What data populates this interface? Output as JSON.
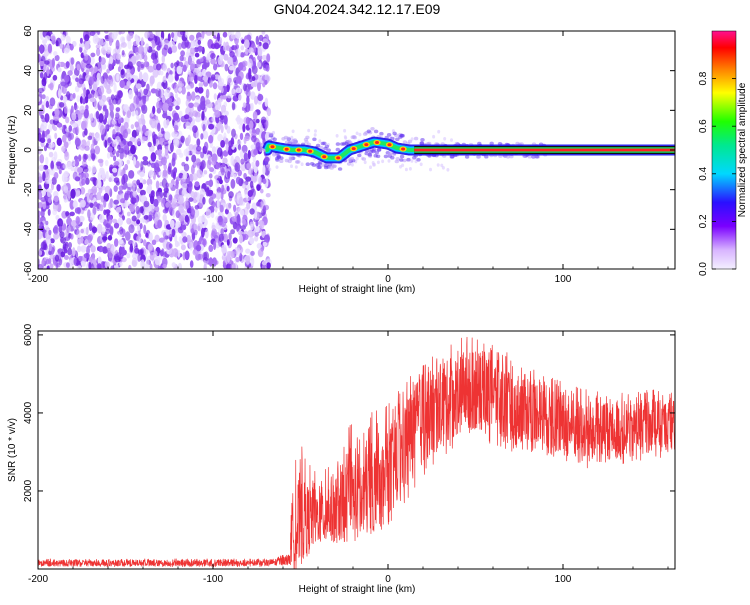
{
  "title": "GN04.2024.342.12.17.E09",
  "chart_data": [
    {
      "type": "heatmap",
      "xlabel": "Height of straight line (km)",
      "ylabel": "Frequency (Hz)",
      "xlim": [
        -200,
        164
      ],
      "ylim": [
        -60,
        60
      ],
      "xticks": [
        "-200",
        "-100",
        "0",
        "100"
      ],
      "yticks": [
        "-60",
        "-40",
        "-20",
        "0",
        "20",
        "40",
        "60"
      ],
      "grid": false,
      "colorbar": {
        "label": "Normalized spectral amplitude",
        "range": [
          0,
          1
        ],
        "ticks": [
          "0.0",
          "0.2",
          "0.4",
          "0.6",
          "0.8"
        ],
        "colors": [
          "#f0f0ff",
          "#d8b4ff",
          "#7a00ff",
          "#2a00ff",
          "#00d8ff",
          "#00ff60",
          "#ffff00",
          "#ff8000",
          "#ff0000",
          "#ff1090"
        ]
      },
      "noise_region_x": [
        -200,
        -68
      ],
      "carrier_track": [
        {
          "x": -68,
          "f": 2
        },
        {
          "x": -62,
          "f": 1
        },
        {
          "x": -55,
          "f": 0
        },
        {
          "x": -48,
          "f": 0
        },
        {
          "x": -42,
          "f": -1
        },
        {
          "x": -35,
          "f": -4
        },
        {
          "x": -28,
          "f": -4
        },
        {
          "x": -22,
          "f": 0
        },
        {
          "x": -15,
          "f": 2
        },
        {
          "x": -8,
          "f": 4
        },
        {
          "x": 0,
          "f": 3
        },
        {
          "x": 5,
          "f": 1
        },
        {
          "x": 12,
          "f": 0
        },
        {
          "x": 20,
          "f": 0
        },
        {
          "x": 164,
          "f": 0
        }
      ]
    },
    {
      "type": "line",
      "xlabel": "Height of straight line (km)",
      "ylabel": "SNR (10 * v/v)",
      "xlim": [
        -200,
        164
      ],
      "ylim": [
        0,
        6100
      ],
      "xticks": [
        "-200",
        "-100",
        "0",
        "100"
      ],
      "yticks": [
        "2000",
        "4000",
        "6000"
      ],
      "grid": false,
      "series_color": "#ee3333",
      "envelope": [
        {
          "x": -200,
          "mean": 150,
          "low": 60,
          "high": 260
        },
        {
          "x": -70,
          "mean": 150,
          "low": 60,
          "high": 260
        },
        {
          "x": -56,
          "mean": 230,
          "low": 100,
          "high": 400
        },
        {
          "x": -54,
          "mean": 1100,
          "low": 200,
          "high": 3600
        },
        {
          "x": -40,
          "mean": 1350,
          "low": 600,
          "high": 2400
        },
        {
          "x": -20,
          "mean": 1800,
          "low": 700,
          "high": 3800
        },
        {
          "x": 0,
          "mean": 2300,
          "low": 1000,
          "high": 4200
        },
        {
          "x": 15,
          "mean": 3600,
          "low": 2000,
          "high": 5200
        },
        {
          "x": 30,
          "mean": 4200,
          "low": 2800,
          "high": 5600
        },
        {
          "x": 45,
          "mean": 4600,
          "low": 3300,
          "high": 6000
        },
        {
          "x": 60,
          "mean": 4500,
          "low": 3200,
          "high": 5800
        },
        {
          "x": 70,
          "mean": 4000,
          "low": 2900,
          "high": 5600
        },
        {
          "x": 80,
          "mean": 4200,
          "low": 3000,
          "high": 5300
        },
        {
          "x": 95,
          "mean": 3800,
          "low": 2800,
          "high": 4900
        },
        {
          "x": 115,
          "mean": 3400,
          "low": 2500,
          "high": 4600
        },
        {
          "x": 135,
          "mean": 3600,
          "low": 2700,
          "high": 4600
        },
        {
          "x": 164,
          "mean": 3700,
          "low": 2900,
          "high": 4600
        }
      ]
    }
  ]
}
